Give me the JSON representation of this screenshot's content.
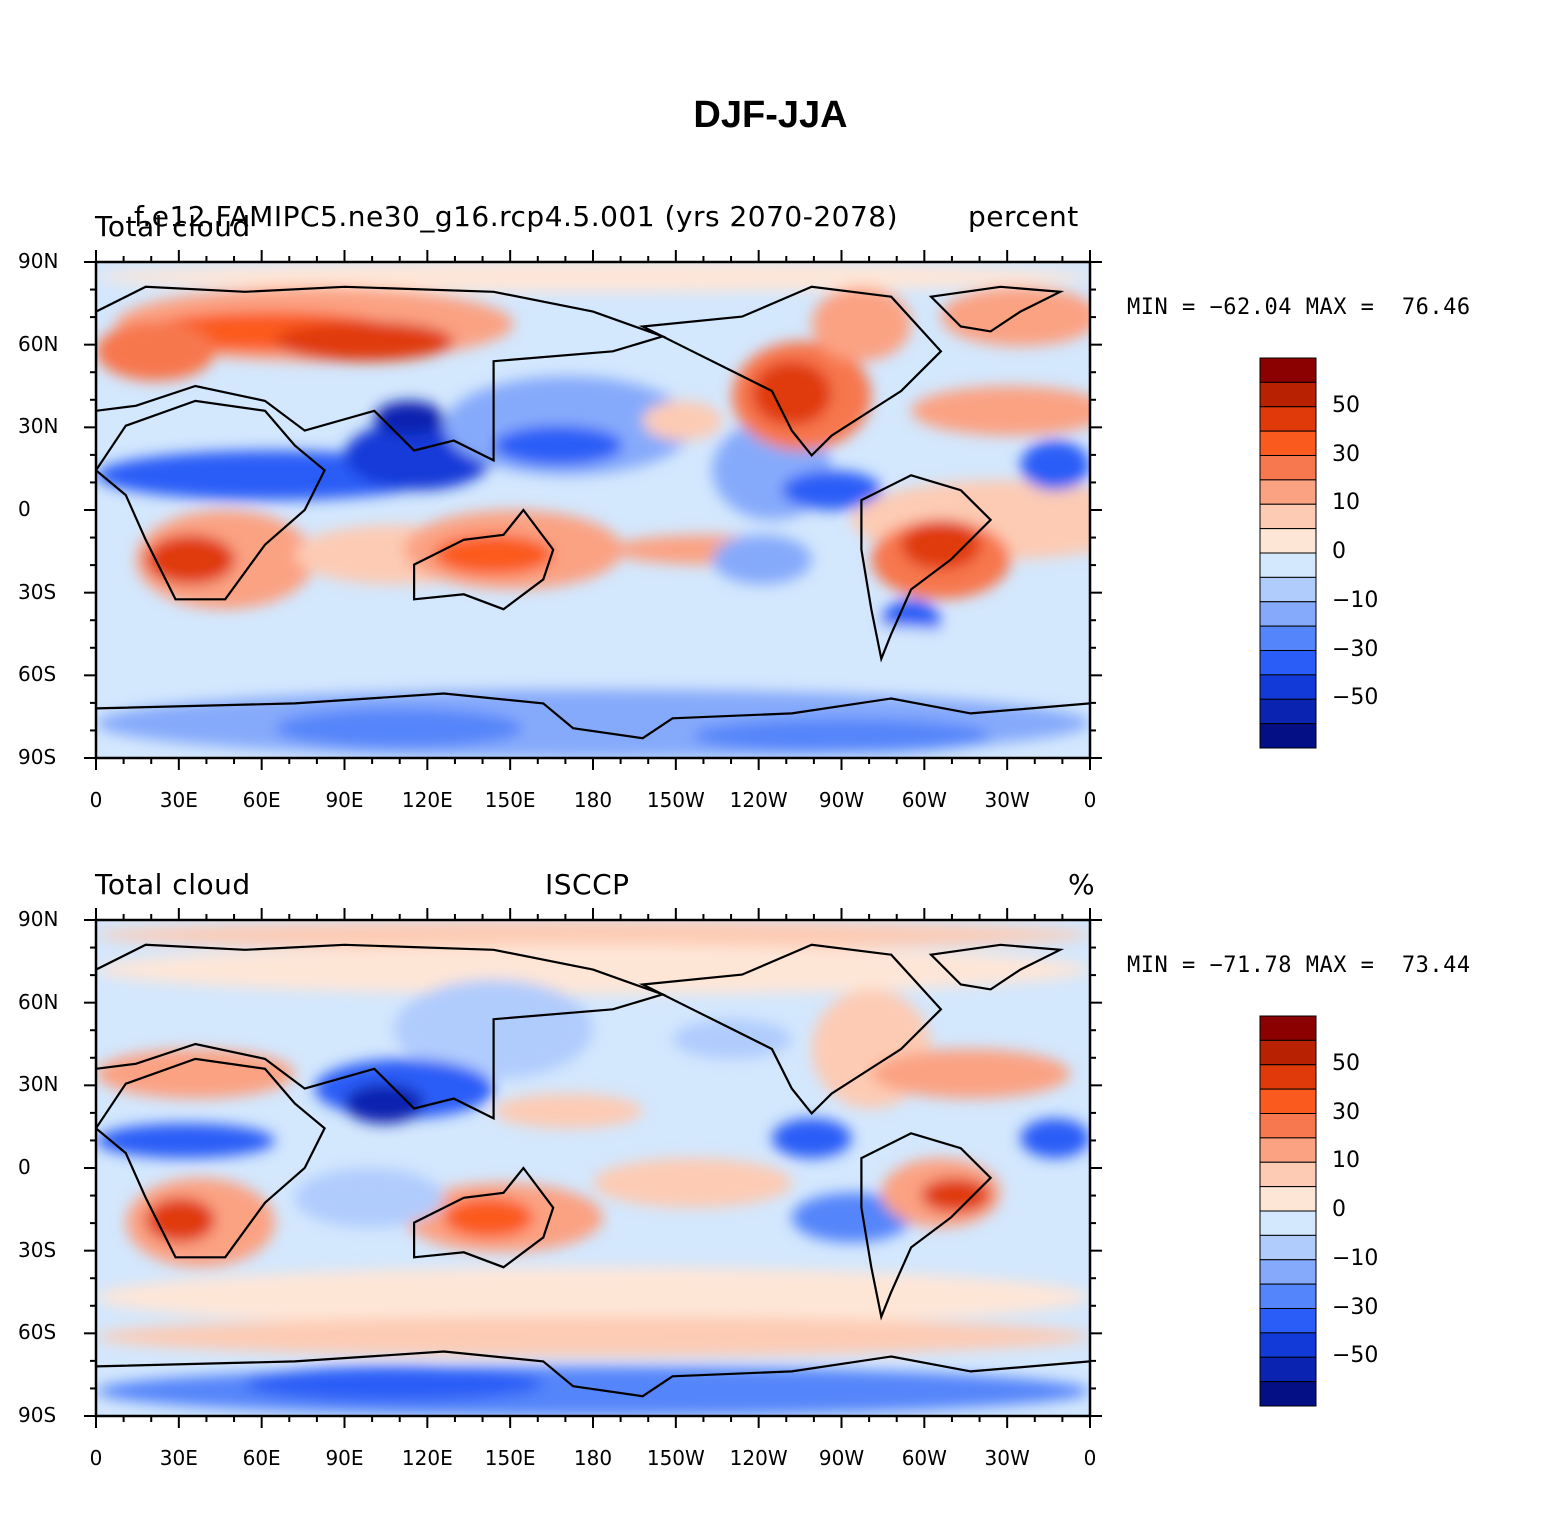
{
  "title": "DJF-JJA",
  "panels": [
    {
      "left_label": "Total cloud",
      "center_label": "f.e12.FAMIPC5.ne30_g16.rcp4.5.001 (yrs 2070-2078)",
      "right_label": "percent",
      "min_label": "MIN = −62.04",
      "max_label": "MAX =  76.46"
    },
    {
      "left_label": "Total cloud",
      "center_label": "ISCCP",
      "right_label": "%",
      "min_label": "MIN = −71.78",
      "max_label": "MAX =  73.44"
    }
  ],
  "lat_ticks": [
    "90N",
    "60N",
    "30N",
    "0",
    "30S",
    "60S",
    "90S"
  ],
  "lon_ticks": [
    "0",
    "30E",
    "60E",
    "90E",
    "120E",
    "150E",
    "180",
    "150W",
    "120W",
    "90W",
    "60W",
    "30W",
    "0"
  ],
  "colorbar": {
    "labels": [
      "50",
      "30",
      "10",
      "0",
      "−10",
      "−30",
      "−50"
    ],
    "colors": [
      "#8b0000",
      "#b82202",
      "#e03a0a",
      "#fb5a1e",
      "#f7774e",
      "#fba283",
      "#fdcbb4",
      "#fee6d7",
      "#d3e7fd",
      "#b0ccfd",
      "#86aafb",
      "#5485fa",
      "#2a5df7",
      "#123ad8",
      "#0a23b0",
      "#040f86"
    ]
  }
}
